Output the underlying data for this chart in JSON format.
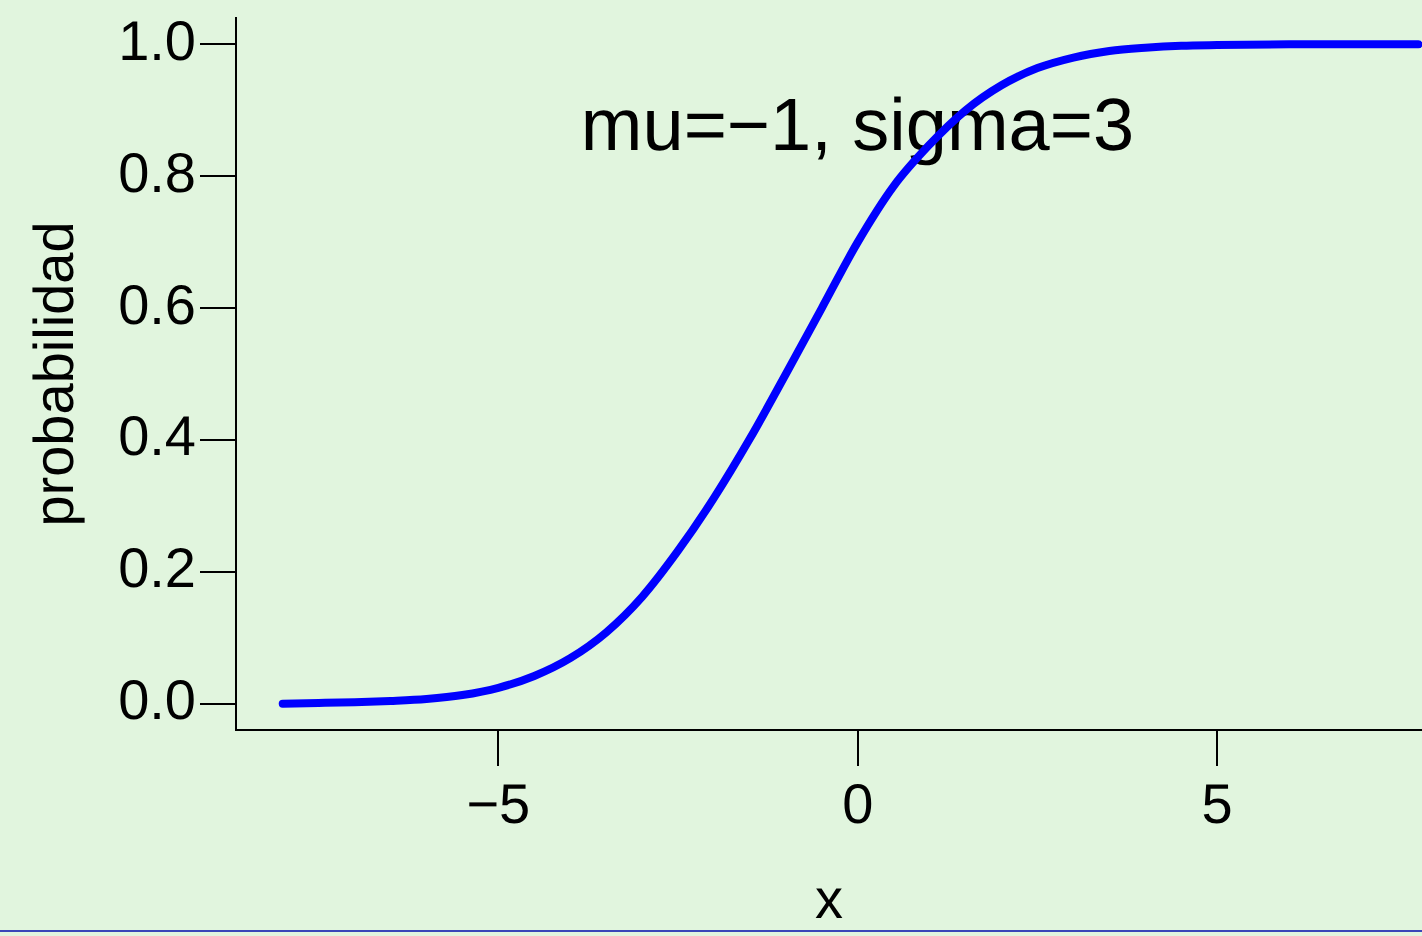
{
  "chart_data": {
    "type": "line",
    "xlabel": "x",
    "ylabel": "probabilidad",
    "annotations": [
      "mu=−1, sigma=3"
    ],
    "x": [
      -8,
      -7.5,
      -7,
      -6.5,
      -6,
      -5.5,
      -5,
      -4.5,
      -4,
      -3.5,
      -3,
      -2.5,
      -2,
      -1.5,
      -1,
      -0.5,
      0,
      0.5,
      1,
      1.5,
      2,
      2.5,
      3,
      3.5,
      4,
      4.5,
      5,
      6,
      7,
      7.8
    ],
    "series": [
      {
        "color": "#0000ff",
        "values": [
          0.0,
          0.001,
          0.002,
          0.004,
          0.007,
          0.013,
          0.024,
          0.042,
          0.069,
          0.108,
          0.162,
          0.232,
          0.312,
          0.402,
          0.5,
          0.6,
          0.7,
          0.785,
          0.848,
          0.9,
          0.938,
          0.964,
          0.98,
          0.99,
          0.995,
          0.998,
          0.999,
          1.0,
          1.0,
          1.0
        ]
      }
    ],
    "xlim": [
      -8.65,
      7.85
    ],
    "ylim": [
      -0.04,
      1.04
    ],
    "xticks": [
      {
        "value": -5,
        "label": "−5"
      },
      0,
      5
    ],
    "yticks": [
      {
        "value": 0,
        "label": "0.0"
      },
      0.2,
      0.4,
      0.6,
      0.8,
      {
        "value": 1,
        "label": "1.0"
      }
    ],
    "marker": "none",
    "line_style": "solid"
  }
}
